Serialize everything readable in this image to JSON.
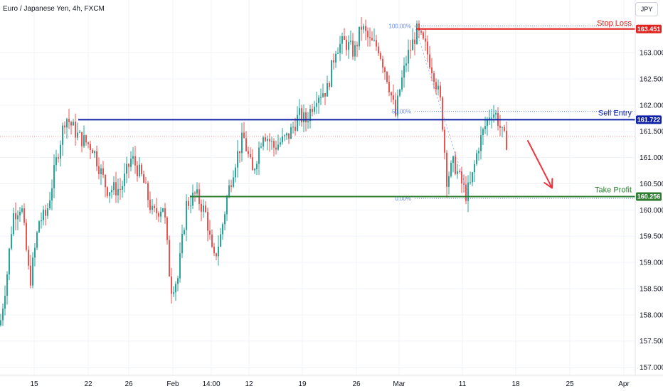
{
  "symbol_title": "Euro / Japanese Yen, 4h, FXCM",
  "currency": "JPY",
  "colors": {
    "up": "#26a69a",
    "down": "#ef5350",
    "stop": "#e3211c",
    "entry": "#0d22a6",
    "target": "#2e7d32",
    "fib": "#2962ff",
    "arrow": "#f0333d"
  },
  "chart_data": {
    "type": "candlestick",
    "title": "Euro / Japanese Yen, 4h, FXCM",
    "ylim": [
      156.9,
      163.95
    ],
    "y_ticks": [
      "163.000",
      "162.500",
      "162.000",
      "161.500",
      "161.000",
      "160.500",
      "160.000",
      "159.500",
      "159.000",
      "158.500",
      "158.000",
      "157.500",
      "157.000"
    ],
    "x_ticks": [
      "15",
      "22",
      "26",
      "Feb",
      "14:00",
      "12",
      "19",
      "26",
      "Mar",
      "11",
      "18",
      "25",
      "Apr"
    ],
    "anchors": [
      [
        0,
        157.8
      ],
      [
        10,
        158.8
      ],
      [
        18,
        159.9
      ],
      [
        30,
        160.1
      ],
      [
        42,
        158.6
      ],
      [
        55,
        159.8
      ],
      [
        65,
        159.9
      ],
      [
        80,
        161.0
      ],
      [
        92,
        161.8
      ],
      [
        110,
        161.4
      ],
      [
        130,
        161.2
      ],
      [
        150,
        160.4
      ],
      [
        170,
        160.4
      ],
      [
        185,
        161.0
      ],
      [
        200,
        160.6
      ],
      [
        215,
        159.9
      ],
      [
        230,
        160.1
      ],
      [
        240,
        158.5
      ],
      [
        250,
        158.7
      ],
      [
        262,
        160.1
      ],
      [
        275,
        160.3
      ],
      [
        290,
        159.9
      ],
      [
        300,
        159.0
      ],
      [
        310,
        159.5
      ],
      [
        320,
        160.3
      ],
      [
        330,
        160.9
      ],
      [
        342,
        161.4
      ],
      [
        355,
        160.7
      ],
      [
        370,
        161.5
      ],
      [
        385,
        161.2
      ],
      [
        405,
        161.4
      ],
      [
        420,
        161.8
      ],
      [
        430,
        161.7
      ],
      [
        445,
        162.2
      ],
      [
        460,
        162.3
      ],
      [
        472,
        163.1
      ],
      [
        485,
        163.2
      ],
      [
        498,
        163.0
      ],
      [
        508,
        163.5
      ],
      [
        520,
        163.2
      ],
      [
        532,
        163.1
      ],
      [
        545,
        162.5
      ],
      [
        556,
        161.8
      ],
      [
        562,
        162.3
      ],
      [
        572,
        162.9
      ],
      [
        586,
        163.4
      ],
      [
        598,
        163.1
      ],
      [
        610,
        162.6
      ],
      [
        620,
        162.0
      ],
      [
        628,
        160.6
      ],
      [
        638,
        160.9
      ],
      [
        646,
        160.6
      ],
      [
        655,
        160.3
      ],
      [
        662,
        160.5
      ],
      [
        672,
        161.2
      ],
      [
        682,
        161.6
      ],
      [
        690,
        161.9
      ],
      [
        698,
        161.8
      ],
      [
        707,
        161.4
      ],
      [
        712,
        161.3
      ]
    ],
    "levels": [
      {
        "name": "Stop Loss",
        "value": 163.451,
        "label": "163.451"
      },
      {
        "name": "Sell Entry",
        "value": 161.722,
        "label": "161.722"
      },
      {
        "name": "Take Profit",
        "value": 160.256,
        "label": "160.256"
      }
    ],
    "fibonacci": [
      {
        "label": "100.00%",
        "value": 163.51
      },
      {
        "label": "50.00%",
        "value": 161.88
      },
      {
        "label": "0.00%",
        "value": 160.22
      }
    ],
    "current_price": 161.4,
    "arrow": {
      "from": [
        742,
        161.32
      ],
      "to": [
        776,
        160.42
      ]
    }
  }
}
